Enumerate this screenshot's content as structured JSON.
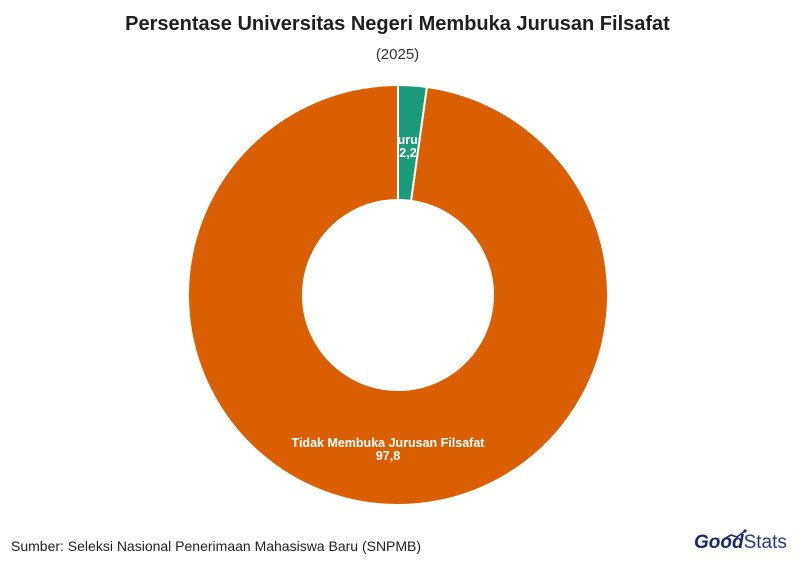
{
  "header": {
    "title": "Persentase Universitas Negeri Membuka Jurusan Filsafat",
    "subtitle": "(2025)"
  },
  "footer": {
    "source": "Sumber: Seleksi Nasional Penerimaan Mahasiswa Baru (SNPMB)",
    "logo_text_bold": "Good",
    "logo_text_regular": "Stats"
  },
  "chart_data": {
    "type": "pie",
    "variant": "donut",
    "title": "Persentase Universitas Negeri Membuka Jurusan Filsafat",
    "subtitle": "(2025)",
    "slices": [
      {
        "label": "Membuka Jurusan Filsafat",
        "value": 2.2,
        "value_label": "2,2",
        "color": "#1a9b7a"
      },
      {
        "label": "Tidak Membuka Jurusan Filsafat",
        "value": 97.8,
        "value_label": "97,8",
        "color": "#d95f02"
      }
    ],
    "legend": "none"
  }
}
